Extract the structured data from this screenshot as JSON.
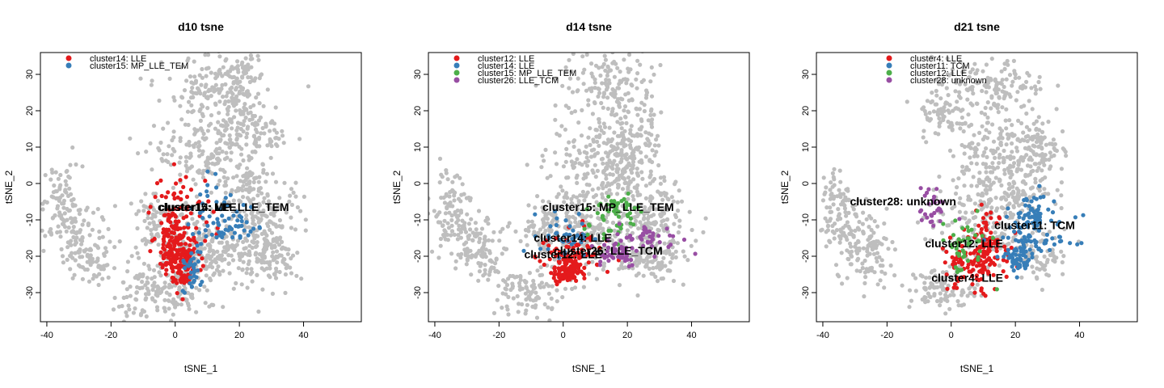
{
  "colors": {
    "background_points": "#bebebe",
    "red": "#e41a1c",
    "blue": "#377eb8",
    "green": "#4daf4a",
    "purple": "#984ea3"
  },
  "chart_data": [
    {
      "type": "scatter",
      "title": "d10 tsne",
      "xlabel": "tSNE_1",
      "ylabel": "tSNE_2",
      "xlim": [
        -42,
        58
      ],
      "ylim": [
        -38,
        36
      ],
      "xticks": [
        -40,
        -20,
        0,
        20,
        40
      ],
      "yticks": [
        -30,
        -20,
        -10,
        0,
        10,
        20,
        30
      ],
      "legend_position": "top-left",
      "legend": [
        {
          "name": "cluster14: LLE",
          "color": "#e41a1c"
        },
        {
          "name": "cluster15: MP_LLE_TEM",
          "color": "#377eb8"
        }
      ],
      "labels": [
        {
          "text": "cluster14: LLE",
          "x": 7,
          "y": -7.5
        },
        {
          "text": "cluster15: MP_LLE_TEM",
          "x": 15,
          "y": -7.5
        }
      ],
      "clusters": [
        {
          "color": "#e41a1c",
          "regions": [
            [
              2,
              -10,
              5,
              7
            ],
            [
              -1,
              -17,
              2,
              5
            ],
            [
              3,
              -23,
              2,
              3
            ]
          ],
          "n": 260
        },
        {
          "color": "#377eb8",
          "regions": [
            [
              13,
              -7,
              6,
              4
            ],
            [
              18,
              -12,
              4,
              2
            ],
            [
              5,
              -24,
              1.5,
              3
            ]
          ],
          "n": 100
        }
      ],
      "gray_regions": [
        [
          -35,
          -5,
          3,
          5,
          60
        ],
        [
          -32,
          -12,
          5,
          5,
          70
        ],
        [
          -28,
          -18,
          4,
          4,
          50
        ],
        [
          -24,
          -22,
          3,
          3,
          30
        ],
        [
          -9,
          -30,
          5,
          4,
          100
        ],
        [
          1,
          -30,
          4,
          3,
          50
        ],
        [
          10,
          -18,
          9,
          6,
          220
        ],
        [
          2,
          -19,
          9,
          4,
          100
        ],
        [
          28,
          -12,
          6,
          7,
          160
        ],
        [
          30,
          -20,
          4,
          3,
          60
        ],
        [
          22,
          0,
          4,
          3,
          60
        ],
        [
          10,
          8,
          8,
          5,
          150
        ],
        [
          20,
          15,
          4,
          4,
          70
        ],
        [
          13,
          25,
          8,
          5,
          160
        ],
        [
          20,
          28,
          3,
          5,
          60
        ],
        [
          28,
          12,
          3,
          3,
          40
        ],
        [
          -7,
          -10,
          3,
          3,
          40
        ]
      ]
    },
    {
      "type": "scatter",
      "title": "d14 tsne",
      "xlabel": "tSNE_1",
      "ylabel": "tSNE_2",
      "xlim": [
        -42,
        58
      ],
      "ylim": [
        -38,
        36
      ],
      "xticks": [
        -40,
        -20,
        0,
        20,
        40
      ],
      "yticks": [
        -30,
        -20,
        -10,
        0,
        10,
        20,
        30
      ],
      "legend_position": "top-left",
      "legend": [
        {
          "name": "cluster12: LLE",
          "color": "#e41a1c"
        },
        {
          "name": "cluster14: LLE",
          "color": "#377eb8"
        },
        {
          "name": "cluster15: MP_LLE_TEM",
          "color": "#4daf4a"
        },
        {
          "name": "cluster26: LLE_TCM",
          "color": "#984ea3"
        }
      ],
      "labels": [
        {
          "text": "cluster15: MP_LLE_TEM",
          "x": 14,
          "y": -7.5
        },
        {
          "text": "cluster14: LLE",
          "x": 3,
          "y": -16
        },
        {
          "text": "cluster12: LLE",
          "x": 0,
          "y": -20.5
        },
        {
          "text": "cluster26: LLE_TCM",
          "x": 14,
          "y": -19.5
        }
      ],
      "clusters": [
        {
          "color": "#e41a1c",
          "regions": [
            [
              3,
              -20,
              5,
              4
            ],
            [
              1,
              -24,
              2,
              2
            ]
          ],
          "n": 170
        },
        {
          "color": "#377eb8",
          "regions": [
            [
              1,
              -14,
              4,
              3
            ]
          ],
          "n": 40
        },
        {
          "color": "#4daf4a",
          "regions": [
            [
              14,
              -10,
              4,
              4
            ],
            [
              19,
              -7,
              3,
              2
            ]
          ],
          "n": 55
        },
        {
          "color": "#984ea3",
          "regions": [
            [
              16,
              -19,
              4,
              2
            ],
            [
              27,
              -15,
              5,
              2
            ]
          ],
          "n": 90
        }
      ],
      "gray_regions": [
        [
          -35,
          -5,
          3,
          5,
          60
        ],
        [
          -32,
          -12,
          5,
          5,
          70
        ],
        [
          -28,
          -18,
          4,
          4,
          50
        ],
        [
          -24,
          -22,
          3,
          3,
          30
        ],
        [
          -10,
          -30,
          5,
          4,
          100
        ],
        [
          10,
          -14,
          9,
          6,
          220
        ],
        [
          2,
          -8,
          7,
          4,
          100
        ],
        [
          28,
          -12,
          6,
          7,
          160
        ],
        [
          28,
          -20,
          4,
          3,
          60
        ],
        [
          12,
          8,
          8,
          5,
          150
        ],
        [
          22,
          13,
          4,
          4,
          70
        ],
        [
          20,
          3,
          4,
          3,
          60
        ],
        [
          15,
          26,
          8,
          5,
          160
        ],
        [
          -7,
          -14,
          3,
          3,
          40
        ]
      ]
    },
    {
      "type": "scatter",
      "title": "d21 tsne",
      "xlabel": "tSNE_1",
      "ylabel": "tSNE_2",
      "xlim": [
        -42,
        58
      ],
      "ylim": [
        -38,
        36
      ],
      "xticks": [
        -40,
        -20,
        0,
        20,
        40
      ],
      "yticks": [
        -30,
        -20,
        -10,
        0,
        10,
        20,
        30
      ],
      "legend_position": "top-center",
      "legend": [
        {
          "name": "cluster4: LLE",
          "color": "#e41a1c"
        },
        {
          "name": "cluster11: TCM",
          "color": "#377eb8"
        },
        {
          "name": "cluster12: LLE",
          "color": "#4daf4a"
        },
        {
          "name": "cluster28: unknown",
          "color": "#984ea3"
        }
      ],
      "labels": [
        {
          "text": "cluster28: unknown",
          "x": -15,
          "y": -6
        },
        {
          "text": "cluster11: TCM",
          "x": 26,
          "y": -12.5
        },
        {
          "text": "cluster12: LLE",
          "x": 4,
          "y": -17.5
        },
        {
          "text": "cluster4: LLE",
          "x": 5,
          "y": -27
        }
      ],
      "clusters": [
        {
          "color": "#e41a1c",
          "regions": [
            [
              6,
              -23,
              5,
              4
            ],
            [
              11,
              -16,
              3,
              4
            ]
          ],
          "n": 170
        },
        {
          "color": "#377eb8",
          "regions": [
            [
              27,
              -15,
              6,
              3
            ],
            [
              25,
              -9,
              3,
              3
            ],
            [
              21,
              -21,
              2,
              2
            ]
          ],
          "n": 170
        },
        {
          "color": "#4daf4a",
          "regions": [
            [
              4,
              -17,
              4,
              4
            ]
          ],
          "n": 45
        },
        {
          "color": "#984ea3",
          "regions": [
            [
              -6,
              -7,
              2,
              3
            ]
          ],
          "n": 30
        }
      ],
      "gray_regions": [
        [
          -35,
          -5,
          3,
          5,
          60
        ],
        [
          -32,
          -12,
          5,
          5,
          70
        ],
        [
          -28,
          -18,
          4,
          4,
          50
        ],
        [
          -24,
          -22,
          3,
          3,
          30
        ],
        [
          -3,
          -29,
          5,
          3,
          100
        ],
        [
          10,
          -10,
          9,
          6,
          200
        ],
        [
          20,
          0,
          6,
          4,
          100
        ],
        [
          28,
          -20,
          4,
          3,
          60
        ],
        [
          15,
          10,
          8,
          5,
          150
        ],
        [
          28,
          10,
          3,
          4,
          60
        ],
        [
          12,
          26,
          9,
          4,
          160
        ],
        [
          -2,
          18,
          4,
          3,
          50
        ]
      ]
    }
  ]
}
